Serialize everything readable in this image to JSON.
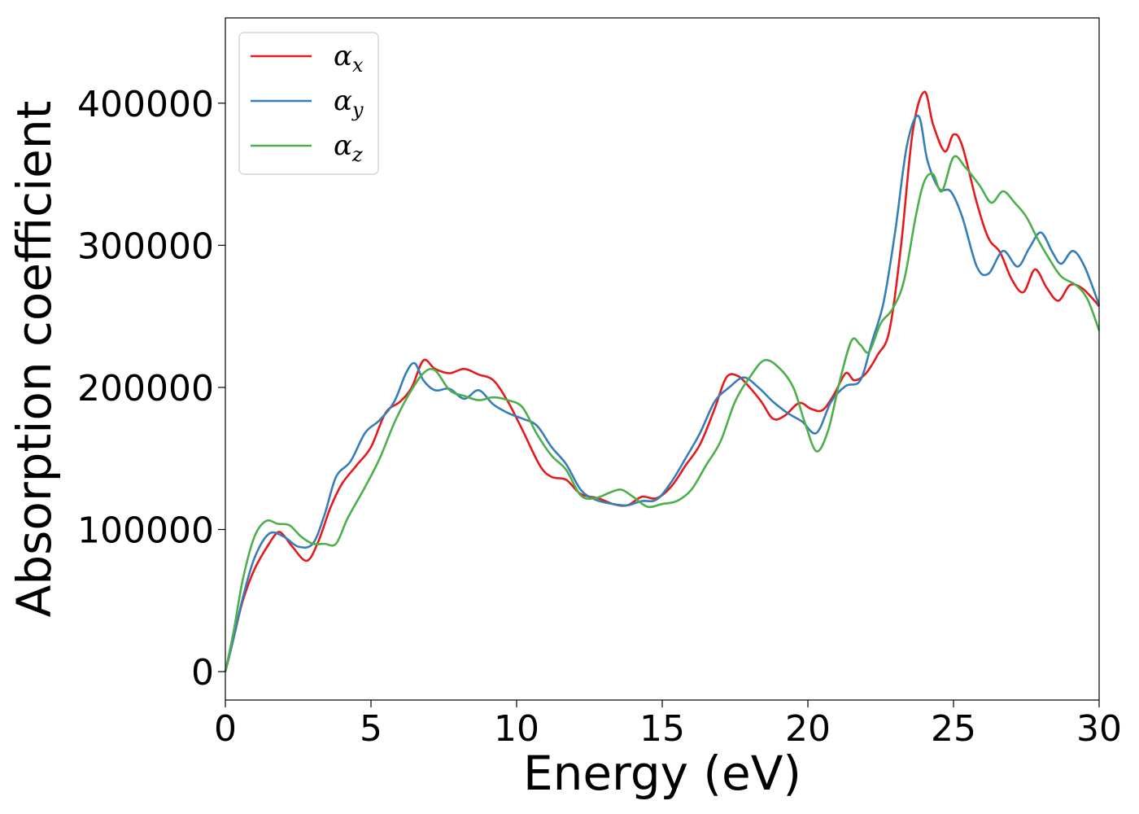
{
  "chart_data": {
    "type": "line",
    "xlabel": "Energy (eV)",
    "ylabel": "Absorption coefficient",
    "xlim": [
      0,
      30
    ],
    "ylim": [
      -20000,
      460000
    ],
    "xticks": [
      0,
      5,
      10,
      15,
      20,
      25,
      30
    ],
    "xtick_labels": [
      "0",
      "5",
      "10",
      "15",
      "20",
      "25",
      "30"
    ],
    "yticks": [
      0,
      100000,
      200000,
      300000,
      400000
    ],
    "ytick_labels": [
      "0",
      "100000",
      "200000",
      "300000",
      "400000"
    ],
    "grid": false,
    "legend_position": "top-left",
    "series": [
      {
        "name": "α_x",
        "legend_symbol": "α",
        "legend_subscript": "x",
        "color": "#e41a1c",
        "x": [
          0,
          0.3,
          0.6,
          1.0,
          1.5,
          1.8,
          2.0,
          2.3,
          2.8,
          3.2,
          3.6,
          4.0,
          4.5,
          5.0,
          5.5,
          6.0,
          6.4,
          6.8,
          7.2,
          7.7,
          8.2,
          8.7,
          9.2,
          9.7,
          10.2,
          10.8,
          11.2,
          11.7,
          12.2,
          12.8,
          13.3,
          13.8,
          14.3,
          14.8,
          15.3,
          15.8,
          16.3,
          16.8,
          17.2,
          17.6,
          18.0,
          18.4,
          18.8,
          19.2,
          19.7,
          20.1,
          20.5,
          20.9,
          21.3,
          21.6,
          22.0,
          22.4,
          22.8,
          23.2,
          23.6,
          24.0,
          24.3,
          24.7,
          25.0,
          25.3,
          25.8,
          26.2,
          26.6,
          27.0,
          27.4,
          27.8,
          28.2,
          28.6,
          29.0,
          29.4,
          29.8,
          30.0
        ],
        "y": [
          0,
          25000,
          50000,
          72000,
          90000,
          98000,
          96000,
          88000,
          78000,
          92000,
          115000,
          132000,
          145000,
          158000,
          182000,
          190000,
          200000,
          219000,
          213000,
          210000,
          213000,
          209000,
          205000,
          190000,
          170000,
          145000,
          137000,
          135000,
          125000,
          122000,
          118000,
          117000,
          123000,
          122000,
          130000,
          145000,
          160000,
          185000,
          207000,
          208000,
          200000,
          190000,
          178000,
          180000,
          189000,
          185000,
          184000,
          195000,
          210000,
          205000,
          210000,
          223000,
          240000,
          300000,
          380000,
          408000,
          385000,
          366000,
          378000,
          370000,
          330000,
          305000,
          295000,
          276000,
          267000,
          283000,
          270000,
          261000,
          272000,
          270000,
          262000,
          257000
        ]
      },
      {
        "name": "α_y",
        "legend_symbol": "α",
        "legend_subscript": "y",
        "color": "#377eb8",
        "x": [
          0,
          0.3,
          0.6,
          1.0,
          1.5,
          2.0,
          2.5,
          3.0,
          3.4,
          3.8,
          4.3,
          4.8,
          5.3,
          5.8,
          6.2,
          6.5,
          6.8,
          7.2,
          7.7,
          8.2,
          8.7,
          9.2,
          9.7,
          10.2,
          10.7,
          11.2,
          11.7,
          12.2,
          12.7,
          13.3,
          13.8,
          14.3,
          14.8,
          15.3,
          15.8,
          16.3,
          16.8,
          17.3,
          17.8,
          18.3,
          18.8,
          19.3,
          19.8,
          20.3,
          20.8,
          21.3,
          21.8,
          22.2,
          22.6,
          23.0,
          23.4,
          23.8,
          24.1,
          24.5,
          24.9,
          25.3,
          25.8,
          26.2,
          26.7,
          27.2,
          27.6,
          28.0,
          28.4,
          28.7,
          29.1,
          29.5,
          30.0
        ],
        "y": [
          0,
          25000,
          52000,
          80000,
          97000,
          95000,
          88000,
          90000,
          110000,
          137000,
          148000,
          168000,
          177000,
          190000,
          210000,
          217000,
          205000,
          198000,
          199000,
          192000,
          198000,
          188000,
          182000,
          178000,
          173000,
          158000,
          146000,
          128000,
          121000,
          118000,
          117000,
          120000,
          121000,
          133000,
          150000,
          168000,
          190000,
          200000,
          207000,
          200000,
          190000,
          182000,
          176000,
          168000,
          190000,
          201000,
          205000,
          232000,
          260000,
          310000,
          370000,
          391000,
          360000,
          340000,
          338000,
          320000,
          285000,
          280000,
          296000,
          285000,
          298000,
          309000,
          295000,
          287000,
          296000,
          285000,
          258000
        ]
      },
      {
        "name": "α_z",
        "legend_symbol": "α",
        "legend_subscript": "z",
        "color": "#4daf4a",
        "x": [
          0,
          0.3,
          0.6,
          1.0,
          1.4,
          1.8,
          2.2,
          2.6,
          3.0,
          3.4,
          3.8,
          4.2,
          4.8,
          5.3,
          5.8,
          6.3,
          6.8,
          7.2,
          7.7,
          8.2,
          8.7,
          9.2,
          9.7,
          10.2,
          10.7,
          11.2,
          11.7,
          12.2,
          12.7,
          13.2,
          13.6,
          14.0,
          14.5,
          15.0,
          15.5,
          16.0,
          16.5,
          17.0,
          17.5,
          18.0,
          18.5,
          19.0,
          19.5,
          19.9,
          20.3,
          20.7,
          21.1,
          21.5,
          21.8,
          22.1,
          22.5,
          22.9,
          23.3,
          23.7,
          24.0,
          24.3,
          24.6,
          25.0,
          25.4,
          25.9,
          26.3,
          26.7,
          27.1,
          27.5,
          27.9,
          28.3,
          28.7,
          29.2,
          29.6,
          30.0
        ],
        "y": [
          0,
          30000,
          65000,
          95000,
          106000,
          104000,
          103000,
          95000,
          90000,
          90000,
          90000,
          108000,
          130000,
          150000,
          175000,
          195000,
          210000,
          212000,
          198000,
          194000,
          191000,
          193000,
          191000,
          186000,
          167000,
          152000,
          142000,
          124000,
          122000,
          126000,
          128000,
          123000,
          116000,
          118000,
          120000,
          128000,
          145000,
          162000,
          190000,
          207000,
          219000,
          214000,
          200000,
          175000,
          155000,
          170000,
          205000,
          233000,
          230000,
          225000,
          245000,
          255000,
          275000,
          320000,
          345000,
          350000,
          338000,
          362000,
          355000,
          342000,
          330000,
          338000,
          330000,
          320000,
          304000,
          290000,
          278000,
          272000,
          262000,
          240000
        ]
      }
    ]
  }
}
